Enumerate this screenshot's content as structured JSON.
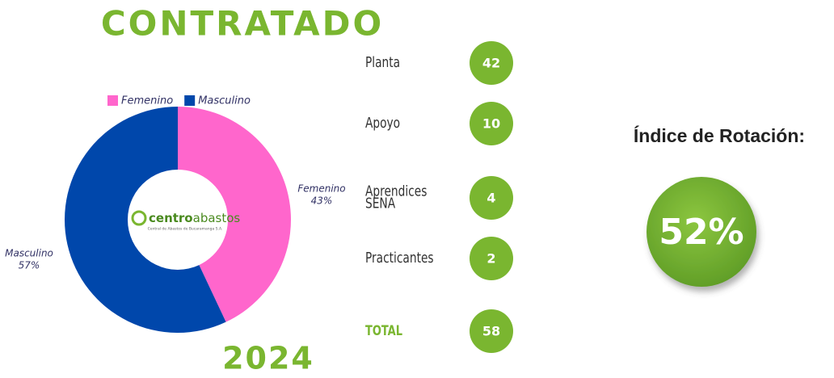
{
  "header": {
    "title": "CONTRATADO",
    "year": "2024"
  },
  "chart_data": {
    "type": "donut",
    "categories": [
      "Femenino",
      "Masculino"
    ],
    "values": [
      43,
      57
    ],
    "value_labels": [
      "43%",
      "57%"
    ],
    "colors": [
      "#ff66cc",
      "#0047ab"
    ],
    "legend": "top",
    "center_logo": {
      "name": "centroabastos",
      "name_bold": "centro",
      "name_rest": "abastos",
      "tagline": "Central de Abastos de Bucaramanga S.A."
    }
  },
  "staff": [
    {
      "label": "Planta",
      "count": "42"
    },
    {
      "label": "Apoyo",
      "count": "10"
    },
    {
      "label": "Aprendices SENA",
      "count": "4"
    },
    {
      "label": "Practicantes",
      "count": "2"
    },
    {
      "label": "TOTAL",
      "count": "58"
    }
  ],
  "index": {
    "label": "Índice de Rotación:",
    "value": "52%"
  }
}
